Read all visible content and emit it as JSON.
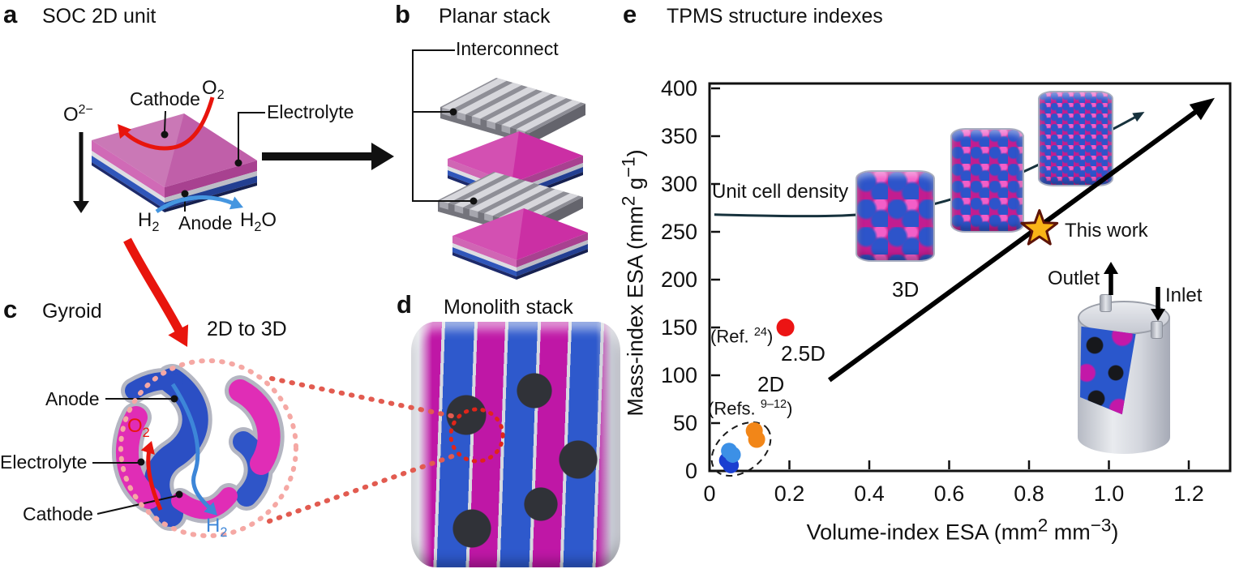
{
  "panels": {
    "a": {
      "letter": "a",
      "title": "SOC 2D unit",
      "labels": {
        "cathode": "Cathode",
        "o2": {
          "base": "O",
          "sub": "2"
        },
        "o2minus": {
          "base": "O",
          "sup": "2−"
        },
        "electrolyte": "Electrolyte",
        "h2": {
          "base": "H",
          "sub": "2"
        },
        "anode": "Anode",
        "h2o": {
          "p1": "H",
          "sub": "2",
          "p2": "O"
        }
      }
    },
    "b": {
      "letter": "b",
      "title": "Planar stack",
      "labels": {
        "interconnect": "Interconnect"
      }
    },
    "c": {
      "letter": "c",
      "title": "Gyroid",
      "labels": {
        "transform": "2D to 3D",
        "anode": "Anode",
        "o2": {
          "base": "O",
          "sub": "2"
        },
        "electrolyte": "Electrolyte",
        "cathode": "Cathode",
        "h2": {
          "base": "H",
          "sub": "2"
        }
      }
    },
    "d": {
      "letter": "d",
      "title": "Monolith stack"
    },
    "e": {
      "letter": "e",
      "title": "TPMS structure indexes"
    }
  },
  "chart_data": {
    "type": "scatter",
    "title": "TPMS structure indexes",
    "xlabel": "Volume-index ESA (mm^2 mm^-3)",
    "ylabel": "Mass-index ESA (mm^2 g^-1)",
    "xlabel_parts": {
      "p1": "Volume-index ESA (mm",
      "s1": "2",
      "p2": " mm",
      "s2": "−3",
      "p3": ")"
    },
    "ylabel_parts": {
      "p1": "Mass-index ESA (mm",
      "s1": "2",
      "p2": " g",
      "s2": "−1",
      "p3": ")"
    },
    "xlim": [
      0,
      1.3
    ],
    "ylim": [
      0,
      405
    ],
    "x_ticks": [
      0,
      0.2,
      0.4,
      0.6,
      0.8,
      1.0,
      1.2
    ],
    "y_ticks": [
      0,
      50,
      100,
      150,
      200,
      250,
      300,
      350,
      400
    ],
    "grid": false,
    "legend": "none",
    "series": [
      {
        "name": "2D planar stacks (Refs. 9-12), dark blue",
        "color": "#1b3fd0",
        "marker_r": 10,
        "points": [
          [
            0.044,
            11
          ],
          [
            0.053,
            6
          ]
        ]
      },
      {
        "name": "2D planar stacks (Refs. 9-12), light blue",
        "color": "#3c90e6",
        "marker_r": 10,
        "points": [
          [
            0.049,
            21
          ],
          [
            0.058,
            17
          ]
        ]
      },
      {
        "name": "2D planar stacks (Refs. 9-12), orange",
        "color": "#f28618",
        "marker_r": 10.5,
        "points": [
          [
            0.112,
            42
          ],
          [
            0.118,
            33
          ]
        ]
      },
      {
        "name": "2.5D (Ref. 24), red",
        "color": "#ec1414",
        "marker_r": 11,
        "points": [
          [
            0.19,
            150
          ]
        ]
      }
    ],
    "this_work": {
      "x": 0.826,
      "y": 253,
      "label": "This work",
      "star_fill": "#f9b417",
      "star_stroke": "#5d1408"
    },
    "trend_arrow": {
      "from": [
        0.3,
        95
      ],
      "to": [
        1.265,
        390
      ]
    },
    "density_curve": {
      "color": "#17323d",
      "points": [
        [
          0.012,
          268
        ],
        [
          0.2,
          266
        ],
        [
          0.38,
          267
        ],
        [
          0.55,
          276
        ],
        [
          0.72,
          300
        ],
        [
          0.88,
          331
        ],
        [
          1.0,
          355
        ],
        [
          1.075,
          372
        ]
      ]
    },
    "annotations": {
      "unit_cell_density": "Unit cell density",
      "d3": "3D",
      "d25": "2.5D",
      "ref24": {
        "prefix": "(Ref.",
        "sup": "24",
        "suffix": ")"
      },
      "d2": "2D",
      "refs912": {
        "prefix": "(Refs.",
        "sup": "9–12",
        "suffix": ")"
      },
      "outlet": "Outlet",
      "inlet": "Inlet"
    }
  }
}
